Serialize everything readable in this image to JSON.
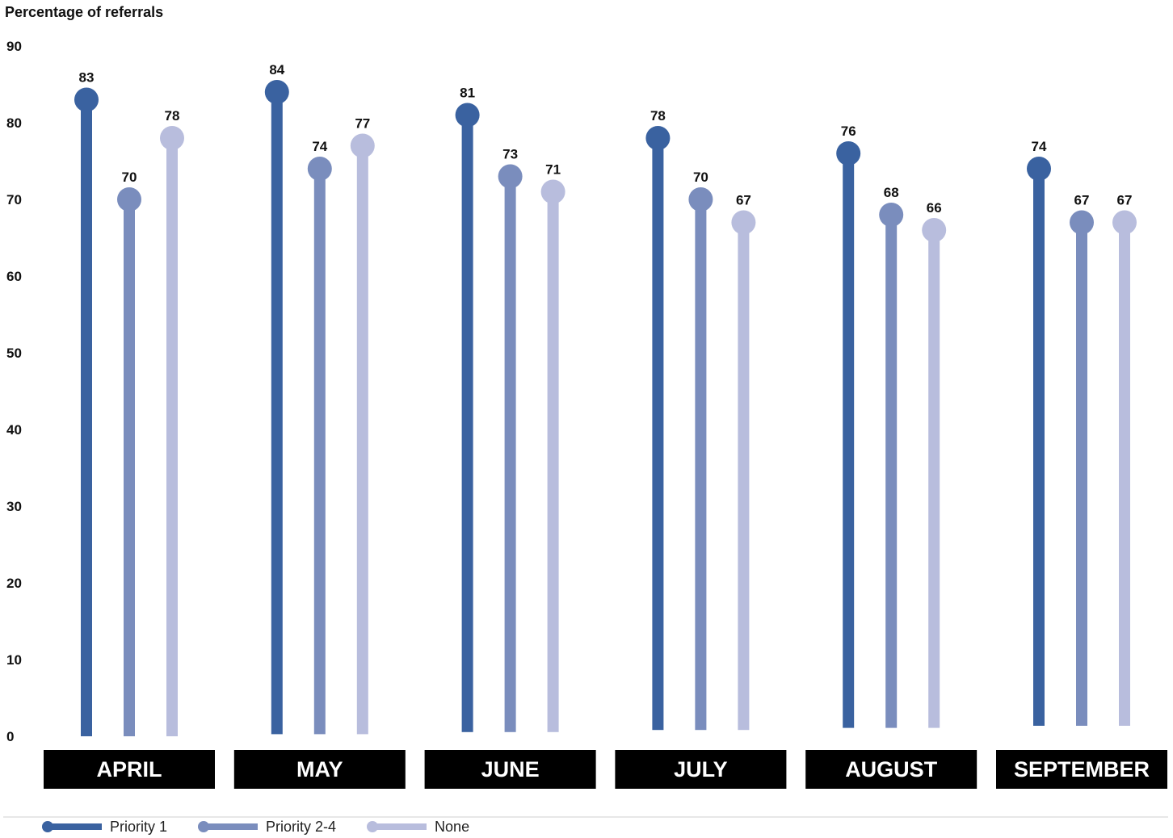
{
  "chart_data": {
    "type": "lollipop",
    "ylabel": "Percentage of referrals",
    "ylim": [
      0,
      90
    ],
    "yticks": [
      "0",
      "10",
      "20",
      "30",
      "40",
      "50",
      "60",
      "70",
      "80",
      "90"
    ],
    "categories": [
      "APRIL",
      "MAY",
      "JUNE",
      "JULY",
      "AUGUST",
      "SEPTEMBER"
    ],
    "series": [
      {
        "name": "Priority 1",
        "color": "#3a62a0",
        "values": [
          83,
          84,
          81,
          78,
          76,
          74
        ]
      },
      {
        "name": "Priority 2-4",
        "color": "#7a8dbd",
        "values": [
          70,
          74,
          73,
          70,
          68,
          67
        ]
      },
      {
        "name": "None",
        "color": "#b8bddd",
        "values": [
          78,
          77,
          71,
          67,
          66,
          67
        ]
      }
    ],
    "grid": false,
    "legend_position": "bottom-left",
    "category_label_background": "#000000"
  }
}
